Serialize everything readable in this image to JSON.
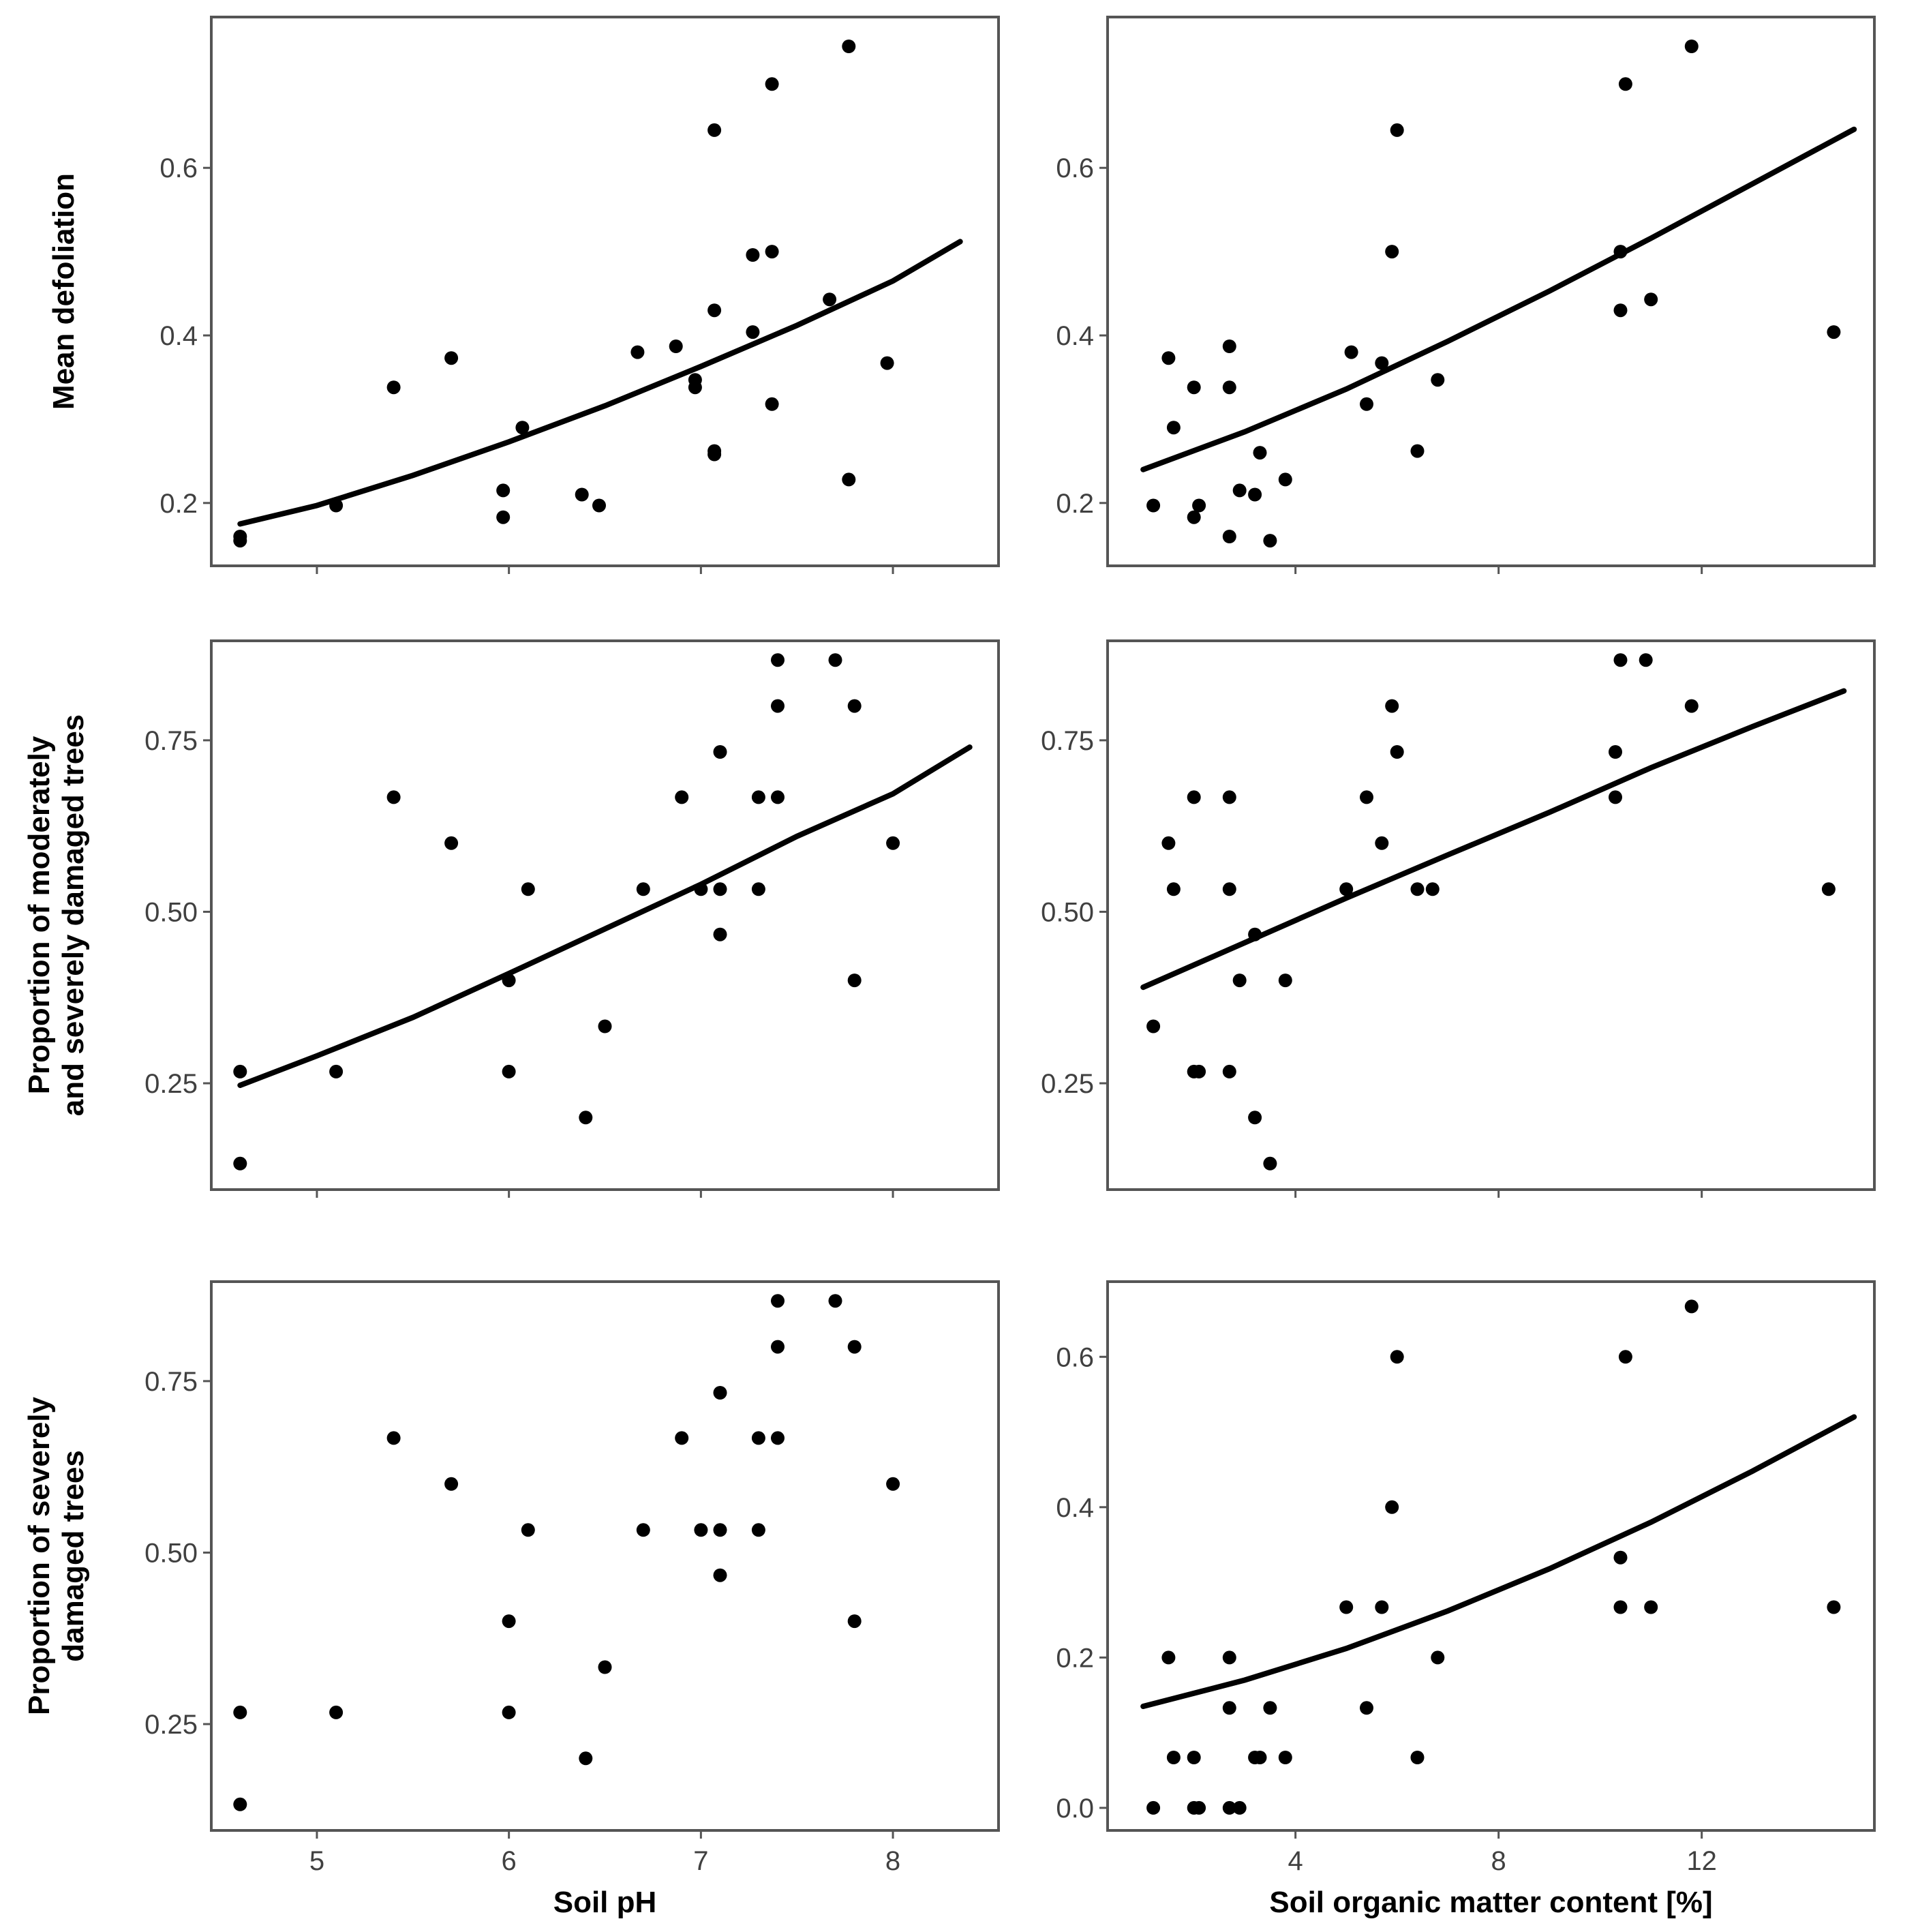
{
  "colors": {
    "point": "#000000",
    "curve": "#000000",
    "frame": "#555555",
    "tick_text": "#404040"
  },
  "row_labels": [
    [
      "Mean defoliation"
    ],
    [
      "Proportion of moderately",
      "and severely damaged trees"
    ],
    [
      "Proportion of severely",
      "damaged trees"
    ]
  ],
  "x_labels": [
    "Soil pH",
    "Soil organic matter content [%]"
  ],
  "chart_data": [
    {
      "id": "ph-defoliation",
      "type": "scatter",
      "xlabel": "Soil pH",
      "ylabel": "Mean defoliation",
      "xlim": [
        4.45,
        8.55
      ],
      "ylim": [
        0.125,
        0.78
      ],
      "xticks": [
        5,
        6,
        7,
        8
      ],
      "xtick_labels": [
        "5",
        "6",
        "7",
        "8"
      ],
      "show_xtick_labels": false,
      "yticks": [
        0.2,
        0.4,
        0.6
      ],
      "ytick_labels": [
        "0.2",
        "0.4",
        "0.6"
      ],
      "points": [
        [
          4.6,
          0.16
        ],
        [
          4.6,
          0.155
        ],
        [
          5.1,
          0.197
        ],
        [
          5.4,
          0.338
        ],
        [
          5.7,
          0.373
        ],
        [
          5.97,
          0.215
        ],
        [
          5.97,
          0.183
        ],
        [
          6.07,
          0.29
        ],
        [
          6.38,
          0.21
        ],
        [
          6.47,
          0.197
        ],
        [
          6.67,
          0.38
        ],
        [
          6.87,
          0.387
        ],
        [
          6.97,
          0.347
        ],
        [
          6.97,
          0.338
        ],
        [
          7.07,
          0.262
        ],
        [
          7.07,
          0.258
        ],
        [
          7.07,
          0.43
        ],
        [
          7.07,
          0.645
        ],
        [
          7.27,
          0.404
        ],
        [
          7.27,
          0.496
        ],
        [
          7.37,
          0.5
        ],
        [
          7.37,
          0.318
        ],
        [
          7.37,
          0.7
        ],
        [
          7.67,
          0.443
        ],
        [
          7.77,
          0.745
        ],
        [
          7.77,
          0.228
        ],
        [
          7.97,
          0.367
        ]
      ],
      "fit": {
        "x": [
          4.6,
          5.0,
          5.5,
          6.0,
          6.5,
          7.0,
          7.5,
          8.0,
          8.35
        ],
        "y": [
          0.175,
          0.197,
          0.233,
          0.273,
          0.316,
          0.363,
          0.412,
          0.465,
          0.512
        ]
      }
    },
    {
      "id": "som-defoliation",
      "type": "scatter",
      "xlabel": "Soil organic matter content [%]",
      "ylabel": "Mean defoliation",
      "xlim": [
        0.3,
        15.4
      ],
      "ylim": [
        0.125,
        0.78
      ],
      "xticks": [
        4,
        8,
        12
      ],
      "xtick_labels": [
        "4",
        "8",
        "12"
      ],
      "show_xtick_labels": false,
      "yticks": [
        0.2,
        0.4,
        0.6
      ],
      "ytick_labels": [
        "0.2",
        "0.4",
        "0.6"
      ],
      "points": [
        [
          1.2,
          0.197
        ],
        [
          1.5,
          0.373
        ],
        [
          1.6,
          0.29
        ],
        [
          2.0,
          0.338
        ],
        [
          2.0,
          0.183
        ],
        [
          2.1,
          0.197
        ],
        [
          2.7,
          0.387
        ],
        [
          2.7,
          0.338
        ],
        [
          2.7,
          0.16
        ],
        [
          2.9,
          0.215
        ],
        [
          3.2,
          0.21
        ],
        [
          3.3,
          0.26
        ],
        [
          3.5,
          0.155
        ],
        [
          3.8,
          0.228
        ],
        [
          5.1,
          0.38
        ],
        [
          5.4,
          0.318
        ],
        [
          5.7,
          0.367
        ],
        [
          5.9,
          0.5
        ],
        [
          6.0,
          0.645
        ],
        [
          6.4,
          0.262
        ],
        [
          6.8,
          0.347
        ],
        [
          10.4,
          0.43
        ],
        [
          10.4,
          0.5
        ],
        [
          10.5,
          0.7
        ],
        [
          11.0,
          0.443
        ],
        [
          11.8,
          0.745
        ],
        [
          14.6,
          0.404
        ]
      ],
      "fit": {
        "x": [
          1.0,
          3.0,
          5.0,
          7.0,
          9.0,
          11.0,
          13.0,
          15.0
        ],
        "y": [
          0.24,
          0.285,
          0.336,
          0.393,
          0.453,
          0.516,
          0.581,
          0.646
        ]
      }
    },
    {
      "id": "ph-moderate-severe",
      "type": "scatter",
      "xlabel": "Soil pH",
      "ylabel": "Proportion of moderately and severely damaged trees",
      "xlim": [
        4.45,
        8.55
      ],
      "ylim": [
        0.095,
        0.895
      ],
      "xticks": [
        5,
        6,
        7,
        8
      ],
      "xtick_labels": [
        "5",
        "6",
        "7",
        "8"
      ],
      "show_xtick_labels": false,
      "yticks": [
        0.25,
        0.5,
        0.75
      ],
      "ytick_labels": [
        "0.25",
        "0.50",
        "0.75"
      ],
      "points": [
        [
          4.6,
          0.267
        ],
        [
          4.6,
          0.133
        ],
        [
          5.1,
          0.267
        ],
        [
          5.4,
          0.667
        ],
        [
          5.7,
          0.6
        ],
        [
          6.0,
          0.4
        ],
        [
          6.0,
          0.267
        ],
        [
          6.1,
          0.533
        ],
        [
          6.4,
          0.2
        ],
        [
          6.5,
          0.333
        ],
        [
          6.7,
          0.533
        ],
        [
          6.9,
          0.667
        ],
        [
          7.0,
          0.533
        ],
        [
          7.1,
          0.533
        ],
        [
          7.1,
          0.467
        ],
        [
          7.1,
          0.733
        ],
        [
          7.3,
          0.667
        ],
        [
          7.3,
          0.533
        ],
        [
          7.4,
          0.867
        ],
        [
          7.4,
          0.8
        ],
        [
          7.4,
          0.667
        ],
        [
          7.7,
          0.867
        ],
        [
          7.8,
          0.8
        ],
        [
          7.8,
          0.4
        ],
        [
          8.0,
          0.6
        ]
      ],
      "fit": {
        "x": [
          4.6,
          5.0,
          5.5,
          6.0,
          6.5,
          7.0,
          7.5,
          8.0,
          8.4
        ],
        "y": [
          0.247,
          0.29,
          0.346,
          0.41,
          0.475,
          0.54,
          0.61,
          0.672,
          0.74
        ]
      }
    },
    {
      "id": "som-moderate-severe",
      "type": "scatter",
      "xlabel": "Soil organic matter content [%]",
      "ylabel": "Proportion of moderately and severely damaged trees",
      "xlim": [
        0.3,
        15.4
      ],
      "ylim": [
        0.095,
        0.895
      ],
      "xticks": [
        4,
        8,
        12
      ],
      "xtick_labels": [
        "4",
        "8",
        "12"
      ],
      "show_xtick_labels": false,
      "yticks": [
        0.25,
        0.5,
        0.75
      ],
      "ytick_labels": [
        "0.25",
        "0.50",
        "0.75"
      ],
      "points": [
        [
          1.2,
          0.333
        ],
        [
          1.5,
          0.6
        ],
        [
          1.6,
          0.533
        ],
        [
          2.0,
          0.667
        ],
        [
          2.0,
          0.267
        ],
        [
          2.1,
          0.267
        ],
        [
          2.7,
          0.667
        ],
        [
          2.7,
          0.533
        ],
        [
          2.7,
          0.267
        ],
        [
          2.9,
          0.4
        ],
        [
          3.2,
          0.467
        ],
        [
          3.2,
          0.2
        ],
        [
          3.5,
          0.133
        ],
        [
          3.8,
          0.4
        ],
        [
          5.0,
          0.533
        ],
        [
          5.4,
          0.667
        ],
        [
          5.7,
          0.6
        ],
        [
          5.9,
          0.8
        ],
        [
          6.0,
          0.733
        ],
        [
          6.4,
          0.533
        ],
        [
          6.7,
          0.533
        ],
        [
          10.3,
          0.733
        ],
        [
          10.3,
          0.667
        ],
        [
          10.4,
          0.867
        ],
        [
          10.9,
          0.867
        ],
        [
          11.8,
          0.8
        ],
        [
          14.5,
          0.533
        ]
      ],
      "fit": {
        "x": [
          1.0,
          3.0,
          5.0,
          7.0,
          9.0,
          11.0,
          13.0,
          14.8
        ],
        "y": [
          0.39,
          0.455,
          0.52,
          0.583,
          0.645,
          0.71,
          0.77,
          0.822
        ]
      }
    },
    {
      "id": "ph-severe",
      "type": "scatter",
      "xlabel": "Soil pH",
      "ylabel": "Proportion of severely damaged trees",
      "xlim": [
        4.45,
        8.55
      ],
      "ylim": [
        0.095,
        0.895
      ],
      "xticks": [
        5,
        6,
        7,
        8
      ],
      "xtick_labels": [
        "5",
        "6",
        "7",
        "8"
      ],
      "show_xtick_labels": true,
      "yticks": [
        0.25,
        0.5,
        0.75
      ],
      "ytick_labels": [
        "0.25",
        "0.50",
        "0.75"
      ],
      "points": [
        [
          4.6,
          0.267
        ],
        [
          4.6,
          0.133
        ],
        [
          5.1,
          0.267
        ],
        [
          5.4,
          0.667
        ],
        [
          5.7,
          0.6
        ],
        [
          6.0,
          0.4
        ],
        [
          6.0,
          0.267
        ],
        [
          6.1,
          0.533
        ],
        [
          6.4,
          0.2
        ],
        [
          6.5,
          0.333
        ],
        [
          6.7,
          0.533
        ],
        [
          6.9,
          0.667
        ],
        [
          7.0,
          0.533
        ],
        [
          7.1,
          0.533
        ],
        [
          7.1,
          0.467
        ],
        [
          7.1,
          0.733
        ],
        [
          7.3,
          0.667
        ],
        [
          7.3,
          0.533
        ],
        [
          7.4,
          0.867
        ],
        [
          7.4,
          0.8
        ],
        [
          7.4,
          0.667
        ],
        [
          7.7,
          0.867
        ],
        [
          7.8,
          0.8
        ],
        [
          7.8,
          0.4
        ],
        [
          8.0,
          0.6
        ]
      ],
      "fit": null
    },
    {
      "id": "som-severe",
      "type": "scatter",
      "xlabel": "Soil organic matter content [%]",
      "ylabel": "Proportion of severely damaged trees",
      "xlim": [
        0.3,
        15.4
      ],
      "ylim": [
        -0.03,
        0.7
      ],
      "xticks": [
        4,
        8,
        12
      ],
      "xtick_labels": [
        "4",
        "8",
        "12"
      ],
      "show_xtick_labels": true,
      "yticks": [
        0.0,
        0.2,
        0.4,
        0.6
      ],
      "ytick_labels": [
        "0.0",
        "0.2",
        "0.4",
        "0.6"
      ],
      "points": [
        [
          1.2,
          0.0
        ],
        [
          1.5,
          0.2
        ],
        [
          1.6,
          0.067
        ],
        [
          2.0,
          0.067
        ],
        [
          2.0,
          0.0
        ],
        [
          2.1,
          0.0
        ],
        [
          2.7,
          0.2
        ],
        [
          2.7,
          0.133
        ],
        [
          2.7,
          0.0
        ],
        [
          2.9,
          0.0
        ],
        [
          3.2,
          0.067
        ],
        [
          3.3,
          0.067
        ],
        [
          3.5,
          0.133
        ],
        [
          3.8,
          0.067
        ],
        [
          5.0,
          0.267
        ],
        [
          5.4,
          0.133
        ],
        [
          5.7,
          0.267
        ],
        [
          5.9,
          0.4
        ],
        [
          6.0,
          0.6
        ],
        [
          6.4,
          0.067
        ],
        [
          6.8,
          0.2
        ],
        [
          10.4,
          0.333
        ],
        [
          10.4,
          0.267
        ],
        [
          10.5,
          0.6
        ],
        [
          11.0,
          0.267
        ],
        [
          11.8,
          0.667
        ],
        [
          14.6,
          0.267
        ]
      ],
      "fit": {
        "x": [
          1.0,
          3.0,
          5.0,
          7.0,
          9.0,
          11.0,
          13.0,
          15.0
        ],
        "y": [
          0.135,
          0.17,
          0.212,
          0.262,
          0.318,
          0.38,
          0.448,
          0.52
        ]
      }
    }
  ]
}
